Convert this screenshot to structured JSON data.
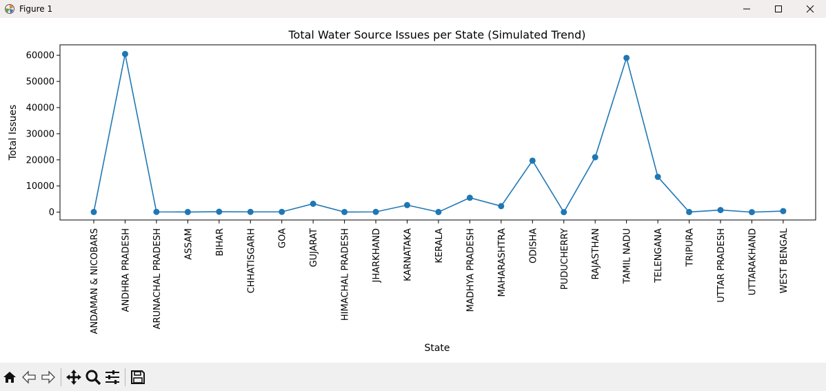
{
  "window": {
    "title": "Figure 1",
    "controls": {
      "minimize": "minimize-icon",
      "maximize": "maximize-icon",
      "close": "close-icon"
    }
  },
  "toolbar": {
    "buttons": [
      "home-icon",
      "back-arrow-icon",
      "forward-arrow-icon",
      "pan-move-icon",
      "zoom-magnifier-icon",
      "configure-subplots-icon",
      "save-floppy-icon"
    ]
  },
  "chart_data": {
    "type": "line",
    "title": "Total Water Source Issues per State (Simulated Trend)",
    "xlabel": "State",
    "ylabel": "Total Issues",
    "ylim": [
      -3000,
      64000
    ],
    "yticks": [
      0,
      10000,
      20000,
      30000,
      40000,
      50000,
      60000
    ],
    "ytick_labels": [
      "0",
      "10000",
      "20000",
      "30000",
      "40000",
      "50000",
      "60000"
    ],
    "categories": [
      "ANDAMAN & NICOBARS",
      "ANDHRA PRADESH",
      "ARUNACHAL PRADESH",
      "ASSAM",
      "BIHAR",
      "CHHATISGARH",
      "GOA",
      "GUJARAT",
      "HIMACHAL PRADESH",
      "JHARKHAND",
      "KARNATAKA",
      "KERALA",
      "MADHYA PRADESH",
      "MAHARASHTRA",
      "ODISHA",
      "PUDUCHERRY",
      "RAJASTHAN",
      "TAMIL NADU",
      "TELENGANA",
      "TRIPURA",
      "UTTAR PRADESH",
      "UTTARAKHAND",
      "WEST BENGAL"
    ],
    "values": [
      50,
      60500,
      100,
      50,
      150,
      100,
      100,
      3200,
      50,
      100,
      2700,
      50,
      5500,
      2300,
      19700,
      0,
      21000,
      59000,
      13500,
      50,
      800,
      0,
      400
    ],
    "grid": false,
    "color": "#1f77b4"
  }
}
